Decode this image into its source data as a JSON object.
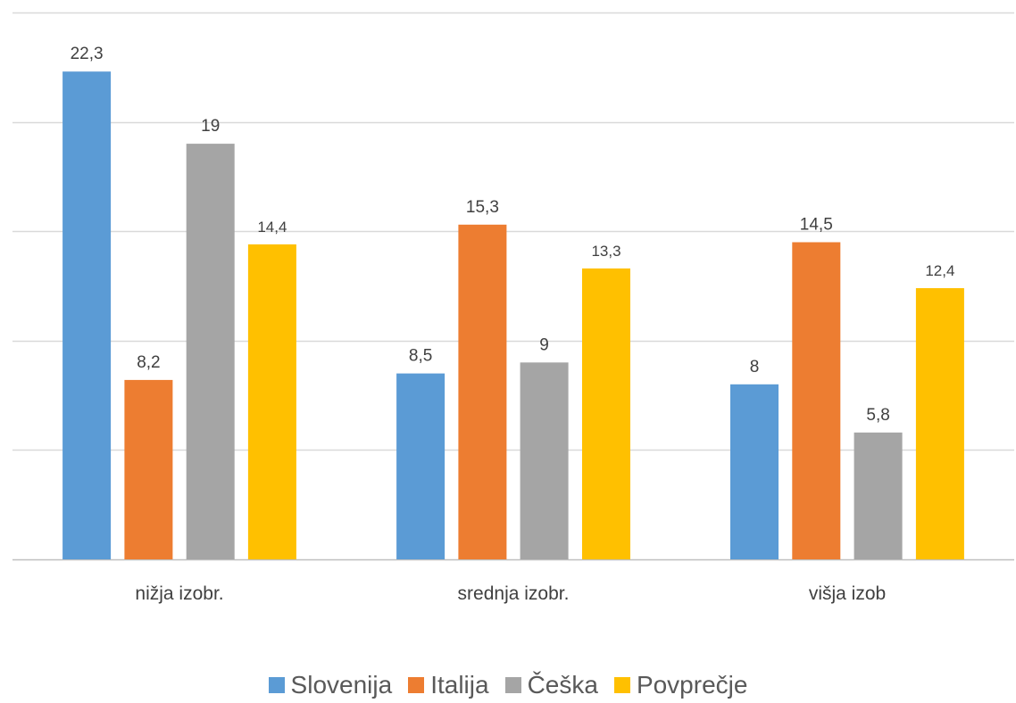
{
  "chart_data": {
    "type": "bar",
    "categories": [
      "nižja izobr.",
      "srednja izobr.",
      "višja izob"
    ],
    "series": [
      {
        "name": "Slovenija",
        "color": "#5B9BD5",
        "values": [
          22.3,
          8.5,
          8
        ],
        "labels": [
          "22,3",
          "8,5",
          "8"
        ]
      },
      {
        "name": "Italija",
        "color": "#ED7D31",
        "values": [
          8.2,
          15.3,
          14.5
        ],
        "labels": [
          "8,2",
          "15,3",
          "14,5"
        ]
      },
      {
        "name": "Češka",
        "color": "#A5A5A5",
        "values": [
          19,
          9,
          5.8
        ],
        "labels": [
          "19",
          "9",
          "5,8"
        ]
      },
      {
        "name": "Povprečje",
        "color": "#FFC000",
        "values": [
          14.4,
          13.3,
          12.4
        ],
        "labels": [
          "14,4",
          "13,3",
          "12,4"
        ]
      }
    ],
    "ylim": [
      0,
      25
    ],
    "gridlines": [
      0,
      5,
      10,
      15,
      20,
      25
    ],
    "grid": true,
    "y_tick_labels_visible": false,
    "legend_position": "bottom",
    "gridline_color": "#D9D9D9",
    "label_color": "#404040"
  }
}
